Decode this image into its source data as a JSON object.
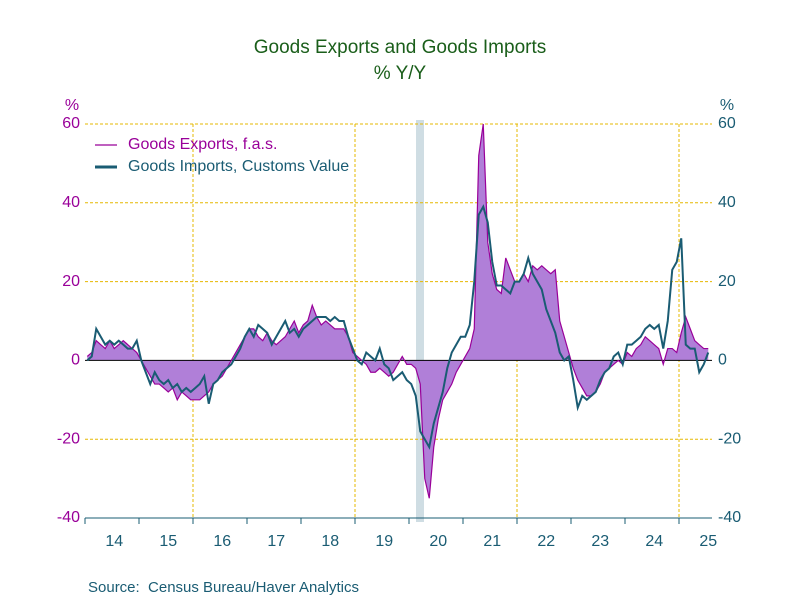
{
  "chart_data": {
    "type": "line",
    "title": "Goods Exports and Goods Imports",
    "subtitle": "% Y/Y",
    "source": "Source:  Census Bureau/Haver Analytics",
    "ylabel": "%",
    "y2label": "%",
    "categories": [
      null,
      null,
      null,
      null,
      null,
      null,
      "14",
      null,
      null,
      null,
      null,
      null,
      null,
      null,
      null,
      null,
      null,
      null,
      "15",
      null,
      null,
      null,
      null,
      null,
      null,
      null,
      null,
      null,
      null,
      null,
      "16",
      null,
      null,
      null,
      null,
      null,
      null,
      null,
      null,
      null,
      null,
      null,
      "17",
      null,
      null,
      null,
      null,
      null,
      null,
      null,
      null,
      null,
      null,
      null,
      "18",
      null,
      null,
      null,
      null,
      null,
      null,
      null,
      null,
      null,
      null,
      null,
      "19",
      null,
      null,
      null,
      null,
      null,
      null,
      null,
      null,
      null,
      null,
      null,
      "20",
      null,
      null,
      null,
      null,
      null,
      null,
      null,
      null,
      null,
      null,
      null,
      "21",
      null,
      null,
      null,
      null,
      null,
      null,
      null,
      null,
      null,
      null,
      null,
      "22",
      null,
      null,
      null,
      null,
      null,
      null,
      null,
      null,
      null,
      null,
      null,
      "23",
      null,
      null,
      null,
      null,
      null,
      null,
      null,
      null,
      null,
      null,
      null,
      "24",
      null,
      null,
      null,
      null,
      null,
      null,
      null,
      null,
      null,
      null,
      null,
      "25"
    ],
    "series": [
      {
        "name": "Goods Exports, f.a.s.",
        "color": "#990099",
        "fill": "#b07fd8",
        "values": [
          1,
          2,
          5,
          4,
          3,
          5,
          3,
          4,
          5,
          4,
          3,
          2,
          0,
          -2,
          -4,
          -6,
          -6,
          -7,
          -8,
          -7,
          -10,
          -8,
          -9,
          -10,
          -10,
          -10,
          -9,
          -8,
          -6,
          -5,
          -4,
          -2,
          0,
          2,
          4,
          6,
          8,
          8,
          6,
          5,
          7,
          5,
          4,
          5,
          6,
          8,
          10,
          7,
          9,
          10,
          14,
          11,
          9,
          10,
          9,
          8,
          8,
          8,
          6,
          2,
          1,
          0,
          -1,
          -3,
          -3,
          -2,
          -3,
          -4,
          -3,
          -1,
          1,
          -1,
          -1,
          -2,
          -6,
          -30,
          -35,
          -22,
          -15,
          -10,
          -8,
          -6,
          -3,
          -1,
          1,
          3,
          8,
          52,
          60,
          30,
          22,
          18,
          17,
          26,
          23,
          20,
          20,
          22,
          20,
          24,
          23,
          24,
          23,
          22,
          23,
          10,
          6,
          2,
          -2,
          -5,
          -7,
          -9,
          -9,
          -8,
          -6,
          -3,
          -2,
          -1,
          0,
          -1,
          2,
          1,
          3,
          4,
          6,
          5,
          4,
          3,
          -1,
          3,
          3,
          2,
          7,
          11,
          8,
          5,
          4,
          3,
          3
        ]
      },
      {
        "name": "Goods Imports, Customs Value",
        "color": "#1a5c73",
        "axis": "y2",
        "values": [
          0,
          1,
          8,
          6,
          4,
          5,
          4,
          5,
          4,
          3,
          3,
          5,
          0,
          -3,
          -6,
          -3,
          -5,
          -6,
          -5,
          -7,
          -6,
          -8,
          -7,
          -8,
          -7,
          -6,
          -4,
          -11,
          -6,
          -5,
          -3,
          -2,
          -1,
          1,
          3,
          6,
          8,
          6,
          9,
          8,
          7,
          4,
          6,
          8,
          10,
          7,
          8,
          6,
          8,
          9,
          10,
          11,
          11,
          11,
          10,
          11,
          10,
          10,
          6,
          3,
          0,
          -1,
          2,
          1,
          0,
          3,
          -1,
          -2,
          -5,
          -4,
          -3,
          -5,
          -6,
          -9,
          -18,
          -20,
          -22,
          -16,
          -12,
          -8,
          -2,
          2,
          4,
          6,
          6,
          9,
          20,
          37,
          39,
          35,
          25,
          19,
          19,
          18,
          17,
          20,
          20,
          22,
          26,
          22,
          20,
          18,
          13,
          10,
          7,
          2,
          0,
          1,
          -5,
          -12,
          -9,
          -10,
          -9,
          -8,
          -5,
          -3,
          -2,
          1,
          2,
          -1,
          4,
          4,
          5,
          6,
          8,
          9,
          8,
          9,
          3,
          10,
          23,
          25,
          31,
          4,
          3,
          3,
          -3,
          -1,
          2
        ]
      }
    ],
    "ylim": [
      -40,
      60
    ],
    "yticks": [
      -40,
      -20,
      0,
      20,
      40,
      60
    ],
    "y2lim": [
      -40,
      60
    ],
    "y2ticks": [
      -40,
      -20,
      0,
      20,
      40,
      60
    ],
    "grid": true,
    "legend": "upper left"
  }
}
